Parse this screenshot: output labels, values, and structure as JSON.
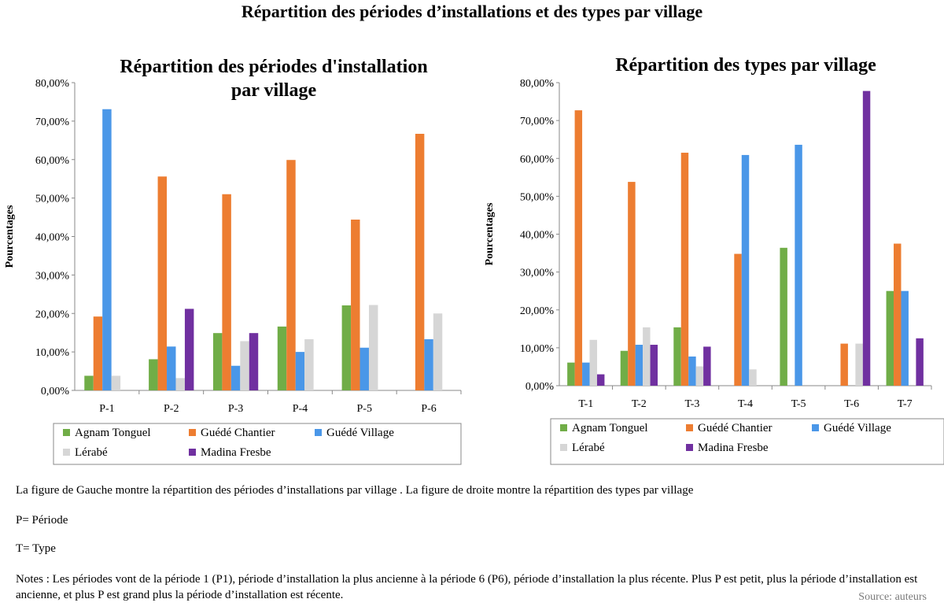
{
  "page": {
    "title": "Répartition des périodes d’installations  et des types  par village",
    "caption": "La figure de Gauche montre la répartition des périodes d’installations par village . La figure de droite montre la répartition des types par village",
    "p_definition": "P= Période",
    "t_definition": "T= Type",
    "notes": "Notes : Les périodes vont de la période 1 (P1), période d’installation la plus ancienne  à la période 6 (P6), période d’installation la plus récente.  Plus P est petit, plus la période d’installation est ancienne, et plus P est grand plus la période d’installation est récente.",
    "source": "Source: auteurs"
  },
  "colors": {
    "Agnam Tonguel": "#70ad47",
    "Guédé Chantier": "#ed7d31",
    "Guédé Village": "#4a97e8",
    "Lérabé": "#d6d6d6",
    "Madina Fresbe": "#7030a0"
  },
  "chart_data": [
    {
      "type": "bar",
      "title_lines": [
        "Répartition des périodes d'installation",
        "par village"
      ],
      "ylabel": "Pourcentages",
      "xlabel": "",
      "ylim": [
        0,
        80
      ],
      "yticks": [
        "0,00%",
        "10,00%",
        "20,00%",
        "30,00%",
        "40,00%",
        "50,00%",
        "60,00%",
        "70,00%",
        "80,00%"
      ],
      "categories": [
        "P-1",
        "P-2",
        "P-3",
        "P-4",
        "P-5",
        "P-6"
      ],
      "legend_position": "bottom",
      "series": [
        {
          "name": "Agnam Tonguel",
          "values": [
            3.8,
            8.1,
            14.9,
            16.6,
            22.1,
            0
          ]
        },
        {
          "name": "Guédé Chantier",
          "values": [
            19.2,
            55.6,
            51.0,
            59.9,
            44.4,
            66.7
          ]
        },
        {
          "name": "Guédé Village",
          "values": [
            73.1,
            11.4,
            6.4,
            10.0,
            11.1,
            13.3
          ]
        },
        {
          "name": "Lérabé",
          "values": [
            3.8,
            3.2,
            12.8,
            13.3,
            22.2,
            20.0
          ]
        },
        {
          "name": "Madina Fresbe",
          "values": [
            0,
            21.2,
            14.9,
            0,
            0,
            0
          ]
        }
      ]
    },
    {
      "type": "bar",
      "title_lines": [
        "Répartition des types par village"
      ],
      "ylabel": "Pourcentages",
      "xlabel": "",
      "ylim": [
        0,
        80
      ],
      "yticks": [
        "0,00%",
        "10,00%",
        "20,00%",
        "30,00%",
        "40,00%",
        "50,00%",
        "60,00%",
        "70,00%",
        "80,00%"
      ],
      "categories": [
        "T-1",
        "T-2",
        "T-3",
        "T-4",
        "T-5",
        "T-6",
        "T-7"
      ],
      "legend_position": "bottom",
      "series": [
        {
          "name": "Agnam Tonguel",
          "values": [
            6.1,
            9.2,
            15.4,
            0,
            36.4,
            0,
            25.0
          ]
        },
        {
          "name": "Guédé Chantier",
          "values": [
            72.7,
            53.8,
            61.5,
            34.8,
            0,
            11.1,
            37.5
          ]
        },
        {
          "name": "Guédé Village",
          "values": [
            6.1,
            10.8,
            7.7,
            60.9,
            63.6,
            0,
            25.0
          ]
        },
        {
          "name": "Lérabé",
          "values": [
            12.1,
            15.4,
            5.1,
            4.3,
            0,
            11.1,
            0
          ]
        },
        {
          "name": "Madina Fresbe",
          "values": [
            3.0,
            10.8,
            10.3,
            0,
            0,
            77.8,
            12.5
          ]
        }
      ]
    }
  ]
}
